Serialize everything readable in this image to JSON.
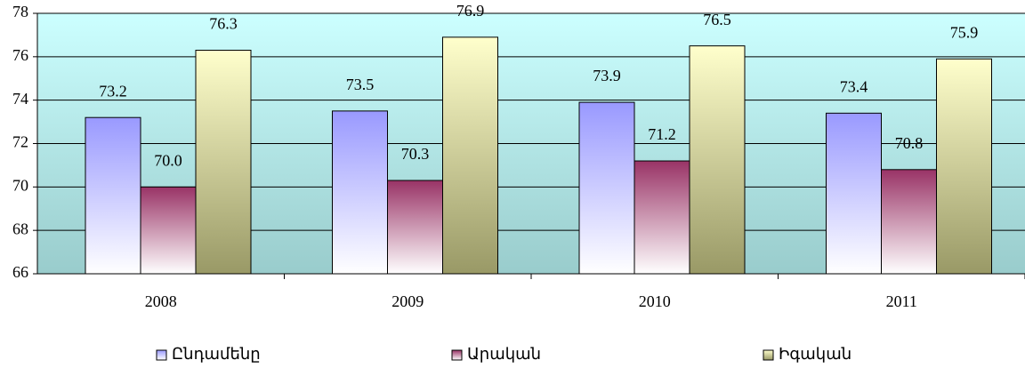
{
  "chart_data": {
    "type": "bar",
    "categories": [
      "2008",
      "2009",
      "2010",
      "2011"
    ],
    "series": [
      {
        "name": "Ընդամենը",
        "color": "#9999ff",
        "values": [
          73.2,
          73.5,
          73.9,
          73.4
        ]
      },
      {
        "name": "Արական",
        "color": "#993366",
        "values": [
          70.0,
          70.3,
          71.2,
          70.8
        ],
        "value_labels": [
          "70.0",
          "70.3",
          "71.2",
          "70.8"
        ]
      },
      {
        "name": "Իգական",
        "color": "#ffffcc",
        "values": [
          76.3,
          76.9,
          76.5,
          75.9
        ]
      }
    ],
    "ylim": [
      66,
      78
    ],
    "yticks": [
      66,
      68,
      70,
      72,
      74,
      76,
      78
    ],
    "grid": true,
    "legend": "bottom"
  }
}
